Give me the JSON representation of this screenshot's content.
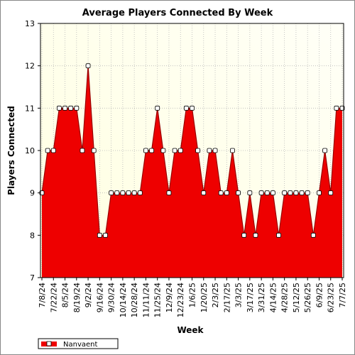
{
  "chart_data": {
    "type": "area",
    "title": "Average Players Connected By Week",
    "xlabel": "Week",
    "ylabel": "Players Connected",
    "ylim": [
      7,
      13
    ],
    "yticks": [
      7,
      8,
      9,
      10,
      11,
      12,
      13
    ],
    "grid": true,
    "legend_placement": "bottom-left",
    "colors": {
      "fill": "#ee0000",
      "line": "#990000",
      "marker_fill": "#ffffff",
      "plot_bg_start": "#ffffe0",
      "plot_bg_end": "#fffff7"
    },
    "x": [
      "7/8/24",
      "7/15/24",
      "7/22/24",
      "7/29/24",
      "8/5/24",
      "8/12/24",
      "8/19/24",
      "8/26/24",
      "9/2/24",
      "9/9/24",
      "9/16/24",
      "9/23/24",
      "9/30/24",
      "10/7/24",
      "10/14/24",
      "10/21/24",
      "10/28/24",
      "11/4/24",
      "11/11/24",
      "11/18/24",
      "11/25/24",
      "12/2/24",
      "12/9/24",
      "12/16/24",
      "12/23/24",
      "12/30/24",
      "1/6/25",
      "1/13/25",
      "1/20/25",
      "1/27/25",
      "2/3/25",
      "2/10/25",
      "2/17/25",
      "2/24/25",
      "3/3/25",
      "3/10/25",
      "3/17/25",
      "3/24/25",
      "3/31/25",
      "4/7/25",
      "4/14/25",
      "4/21/25",
      "4/28/25",
      "5/5/25",
      "5/12/25",
      "5/19/25",
      "5/26/25",
      "6/2/25",
      "6/9/25",
      "6/16/25",
      "6/23/25",
      "6/30/25",
      "7/7/25"
    ],
    "tick_labels": [
      "7/8/24",
      "7/22/24",
      "8/5/24",
      "8/19/24",
      "9/2/24",
      "9/16/24",
      "9/30/24",
      "10/14/24",
      "10/28/24",
      "11/11/24",
      "11/25/24",
      "12/9/24",
      "12/23/24",
      "1/6/25",
      "1/20/25",
      "2/3/25",
      "2/17/25",
      "3/3/25",
      "3/17/25",
      "3/31/25",
      "4/14/25",
      "4/28/25",
      "5/12/25",
      "5/26/25",
      "6/9/25",
      "6/23/25",
      "7/7/25"
    ],
    "series": [
      {
        "name": "Nanvaent",
        "values": [
          9,
          10,
          10,
          11,
          11,
          11,
          11,
          10,
          12,
          10,
          8,
          8,
          9,
          9,
          9,
          9,
          9,
          9,
          10,
          10,
          11,
          10,
          9,
          10,
          10,
          11,
          11,
          10,
          9,
          10,
          10,
          9,
          9,
          10,
          9,
          8,
          9,
          8,
          9,
          9,
          9,
          8,
          9,
          9,
          9,
          9,
          9,
          8,
          9,
          10,
          9,
          11,
          11
        ]
      }
    ]
  }
}
